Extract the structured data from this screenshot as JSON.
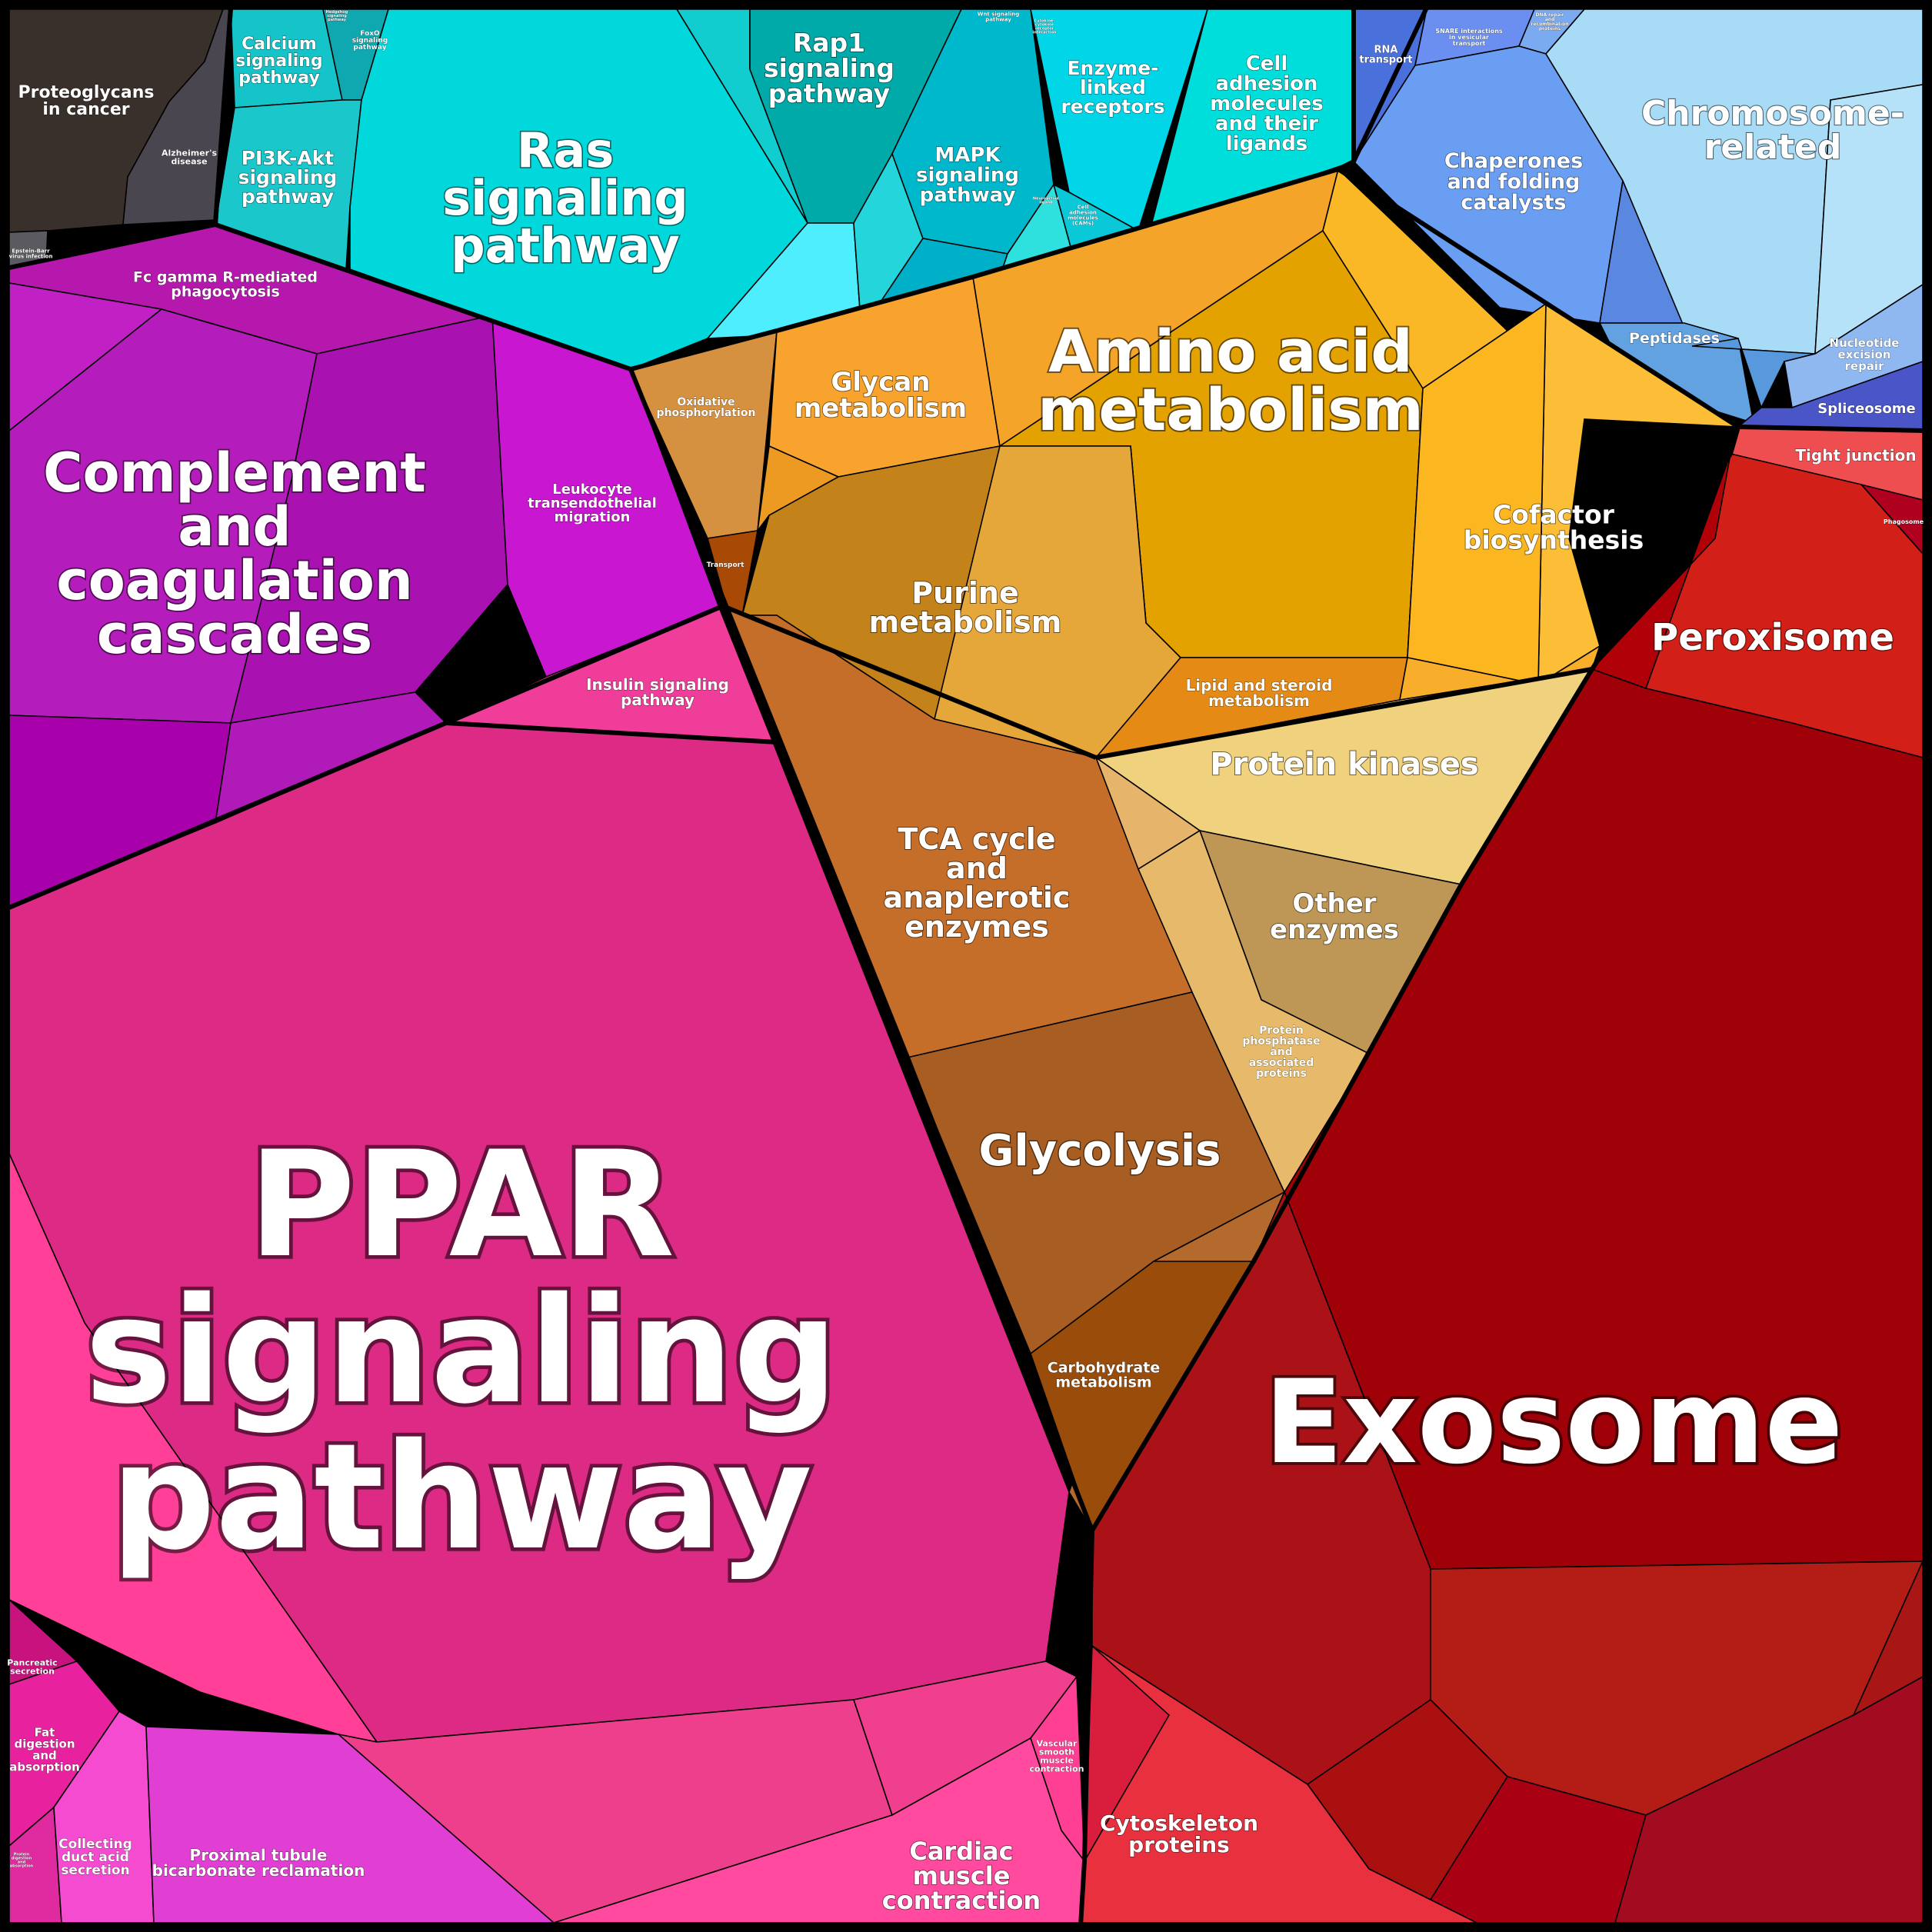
{
  "title": "",
  "colors": {
    "teal": "#00d8dc",
    "orange": "#e6a200",
    "magenta": "#dc2a85",
    "purple": "#b018b8",
    "red": "#a00008",
    "blue": "#6fa0f0",
    "dark": "#3a302c",
    "brown": "#c46e2a"
  },
  "labels": {
    "ppar": [
      "PPAR",
      "signaling",
      "pathway"
    ],
    "exosome": [
      "Exosome"
    ],
    "amino": [
      "Amino acid",
      "metabolism"
    ],
    "ras": [
      "Ras",
      "signaling",
      "pathway"
    ],
    "complement": [
      "Complement",
      "and",
      "coagulation",
      "cascades"
    ],
    "glycolysis": [
      "Glycolysis"
    ],
    "tca": [
      "TCA cycle",
      "and",
      "anaplerotic",
      "enzymes"
    ],
    "peroxisome": [
      "Peroxisome"
    ],
    "chromosome": [
      "Chromosome-",
      "related"
    ],
    "purine": [
      "Purine",
      "metabolism"
    ],
    "glycan": [
      "Glycan",
      "metabolism"
    ],
    "cofactor": [
      "Cofactor",
      "biosynthesis"
    ],
    "protein_kinases": [
      "Protein kinases"
    ],
    "other_enzymes": [
      "Other",
      "enzymes"
    ],
    "chaperones": [
      "Chaperones",
      "and folding",
      "catalysts"
    ],
    "cytoskeleton": [
      "Cytoskeleton",
      "proteins"
    ],
    "cardiac": [
      "Cardiac",
      "muscle",
      "contraction"
    ],
    "rap1": [
      "Rap1",
      "signaling",
      "pathway"
    ],
    "mapk": [
      "MAPK",
      "signaling",
      "pathway"
    ],
    "enzyme_linked": [
      "Enzyme-",
      "linked",
      "receptors"
    ],
    "cell_adhesion": [
      "Cell",
      "adhesion",
      "molecules",
      "and their",
      "ligands"
    ],
    "calcium": [
      "Calcium",
      "signaling",
      "pathway"
    ],
    "pi3k": [
      "PI3K-Akt",
      "signaling",
      "pathway"
    ],
    "proteoglycans": [
      "Proteoglycans",
      "in cancer"
    ],
    "alzheimers": [
      "Alzheimer's",
      "disease"
    ],
    "epstein": [
      "Epstein-Barr",
      "virus infection"
    ],
    "foxo": [
      "FoxO",
      "signaling",
      "pathway"
    ],
    "rna_transport": [
      "RNA",
      "transport"
    ],
    "snare": [
      "SNARE interactions",
      "in vesicular",
      "transport"
    ],
    "dna_repair": [
      "DNA repair",
      "and",
      "recombination",
      "proteins"
    ],
    "fc_gamma": [
      "Fc gamma R-mediated",
      "phagocytosis"
    ],
    "leukocyte": [
      "Leukocyte",
      "transendothelial",
      "migration"
    ],
    "insulin": [
      "Insulin signaling",
      "pathway"
    ],
    "oxphos": [
      "Oxidative",
      "phosphorylation"
    ],
    "transport": [
      "Transport"
    ],
    "lipid": [
      "Lipid and steroid",
      "metabolism"
    ],
    "phosphatase": [
      "Protein",
      "phosphatase",
      "and",
      "associated",
      "proteins"
    ],
    "carbohydrate": [
      "Carbohydrate",
      "metabolism"
    ],
    "tight_junction": [
      "Tight junction"
    ],
    "phagosome": [
      "Phagosome"
    ],
    "peptidases": [
      "Peptidases"
    ],
    "ner": [
      "Nucleotide",
      "excision",
      "repair"
    ],
    "spliceosome": [
      "Spliceosome"
    ],
    "pancreatic": [
      "Pancreatic",
      "secretion"
    ],
    "fat": [
      "Fat",
      "digestion",
      "and",
      "absorption"
    ],
    "collecting": [
      "Collecting",
      "duct acid",
      "secretion"
    ],
    "proximal": [
      "Proximal tubule",
      "bicarbonate reclamation"
    ],
    "vascular": [
      "Vascular",
      "smooth",
      "muscle",
      "contraction"
    ],
    "wnt": [
      "Wnt signaling",
      "pathway"
    ],
    "cam": [
      "Cell",
      "adhesion",
      "molecules",
      "(CAMs)"
    ],
    "hedgehog": [
      "Hedgehog",
      "signaling",
      "pathway"
    ],
    "cytokine": [
      "Cytokine-",
      "cytokine",
      "receptor",
      "interaction"
    ],
    "neuro": [
      "Neuroactive",
      "ligand"
    ],
    "protein_digestion": [
      "Protein",
      "digestion",
      "and",
      "absorption"
    ]
  }
}
